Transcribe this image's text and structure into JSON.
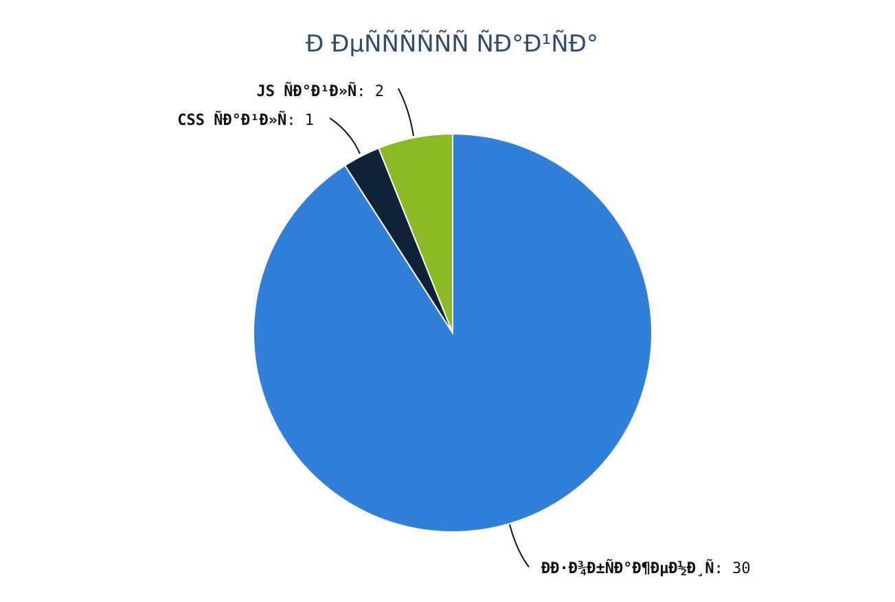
{
  "chart_data": {
    "type": "pie",
    "title": "Ð ÐµÑÑÑÑÑÑ ÑÐ°Ð¹ÑÐ°",
    "start_angle_deg": -90,
    "direction": "clockwise",
    "slices": [
      {
        "name": "ÐÐ·Ð¾Ð±ÑÐ°Ð¶ÐµÐ½Ð¸Ñ",
        "value": 30,
        "color": "#3080DA"
      },
      {
        "name": "CSS ÑÐ°Ð¹Ð»Ñ",
        "value": 1,
        "color": "#0E2238"
      },
      {
        "name": "JS ÑÐ°Ð¹Ð»Ñ",
        "value": 2,
        "color": "#8BBA24"
      }
    ],
    "label_format": "{name}: {value}",
    "legend": "none"
  }
}
